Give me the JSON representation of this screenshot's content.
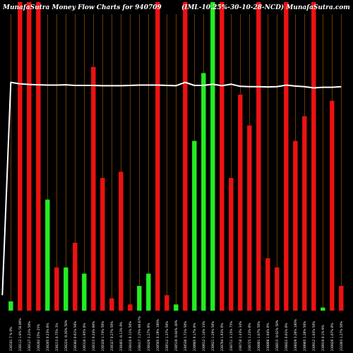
{
  "chart_data": {
    "type": "bar",
    "title": "MunafaSutra  Money Flow  Charts for 940709",
    "subtitle": "(IML-10.25%-30-10-28-NCD) MunafaSutra.com",
    "ylim": [
      0,
      100
    ],
    "colors": {
      "background": "#000000",
      "up": "#22ee22",
      "down": "#ee1111",
      "line": "#ffffff",
      "gridline": "#b85c00"
    },
    "grid": "vertical per category",
    "categories": [
      "230101 7 % 0%",
      "230112 1.6% 56.00%",
      "230127 2.21% 50%",
      "230202 25% 25%",
      "230205 0.23% 0%",
      "230213 0.75% 3%",
      "230224 -0.26% 50%",
      "230302 0.61% 50%",
      "230310 1.95% 0%",
      "230315 0.24% 60%",
      "230320 1.74% 50%",
      "230327 0.27% 50%",
      "230403 -0.13% 0%",
      "230410 0.11% 50%",
      "230417 1.25% 66.67%",
      "230426 1.27% 0%",
      "230505 0.19% 100%",
      "230512 1.37% 50%",
      "230519 -0.04% 40%",
      "230530 1.71% 50%",
      "230605 0.17% 0%",
      "230612 1.14% 33%",
      "230621 1.26% 50%",
      "230704 1.93% 0%",
      "230711 3.15% 75%",
      "230718 1.43% 34%",
      "230725 1.23% 0%",
      "230801 1.07% 50%",
      "230808 1.64% 0%",
      "230815 -0.02% 50%",
      "230822 0.01% 0%",
      "230829 3.26% 100%",
      "230905 1.26% 50%",
      "230912 1.03% 50%",
      "230919 0.1% 9%",
      "230926 1.07% 0%",
      "231003 1.27% 50%"
    ],
    "bar_series": {
      "colors": [
        "green",
        "red",
        "red",
        "red",
        "green",
        "red",
        "green",
        "red",
        "green",
        "red",
        "red",
        "red",
        "red",
        "red",
        "green",
        "green",
        "red",
        "red",
        "green",
        "red",
        "green",
        "green",
        "green",
        "red",
        "red",
        "red",
        "red",
        "red",
        "red",
        "red",
        "red",
        "red",
        "red",
        "red",
        "green",
        "red",
        "red"
      ],
      "values": [
        3,
        100,
        100,
        100,
        36,
        14,
        14,
        22,
        12,
        79,
        43,
        4,
        45,
        2,
        8,
        12,
        100,
        5,
        2,
        100,
        55,
        77,
        101,
        100,
        43,
        70,
        60,
        100,
        17,
        14,
        100,
        55,
        63,
        100,
        1,
        68,
        8
      ]
    },
    "line_series": {
      "values": [
        74,
        73.5,
        73.3,
        73.2,
        73.1,
        73.1,
        73.2,
        73.0,
        73.0,
        73.0,
        72.9,
        72.9,
        72.9,
        73.0,
        73.1,
        73.1,
        73.1,
        73.0,
        72.9,
        74.0,
        73.0,
        73.0,
        73.4,
        72.9,
        73.4,
        72.7,
        72.6,
        72.6,
        72.5,
        72.6,
        73.1,
        72.8,
        72.6,
        72.2,
        72.4,
        72.4,
        72.6
      ],
      "start_value": 5
    }
  }
}
